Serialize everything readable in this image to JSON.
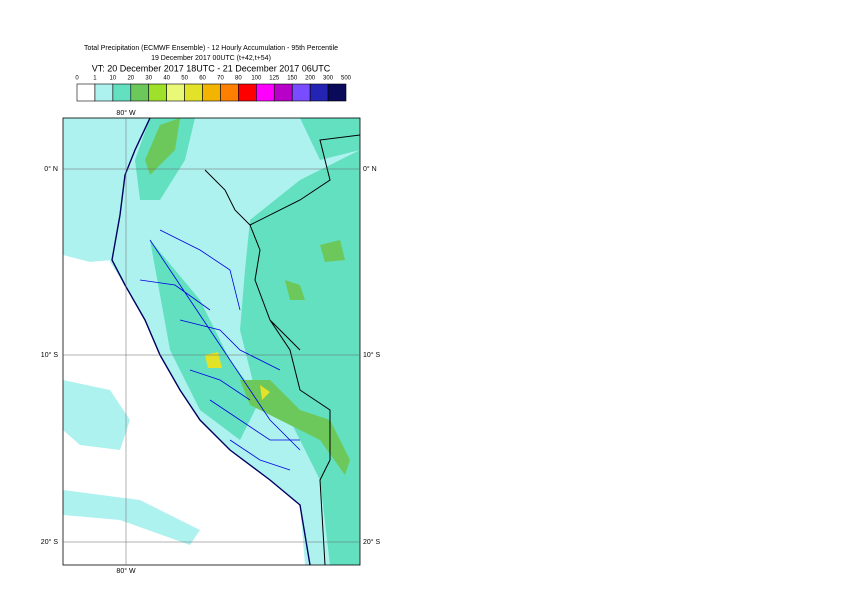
{
  "header": {
    "lines": [
      "Total Precipitation (ECMWF Ensemble) - 12 Hourly Accumulation - 95th Percentile",
      "19 December 2017 00UTC (t+42,t+54)",
      "VT: 20 December 2017 18UTC - 21 December 2017 06UTC"
    ]
  },
  "legend": {
    "labels": [
      "0",
      "1",
      "10",
      "20",
      "30",
      "40",
      "50",
      "60",
      "70",
      "80",
      "100",
      "125",
      "150",
      "200",
      "300",
      "500"
    ],
    "colors": [
      "#ffffff",
      "#aef2f0",
      "#62e0c0",
      "#6cc85a",
      "#9ee02a",
      "#eaf878",
      "#e2e228",
      "#f2b400",
      "#ff8000",
      "#ff0000",
      "#ff00ff",
      "#b800c8",
      "#7a4cff",
      "#2424b4",
      "#0a0a5a"
    ]
  },
  "map": {
    "labels": [
      "80° W",
      "0° N",
      "10° S",
      "20° S",
      "80° W",
      "0° N",
      "10° S",
      "20° S"
    ]
  }
}
